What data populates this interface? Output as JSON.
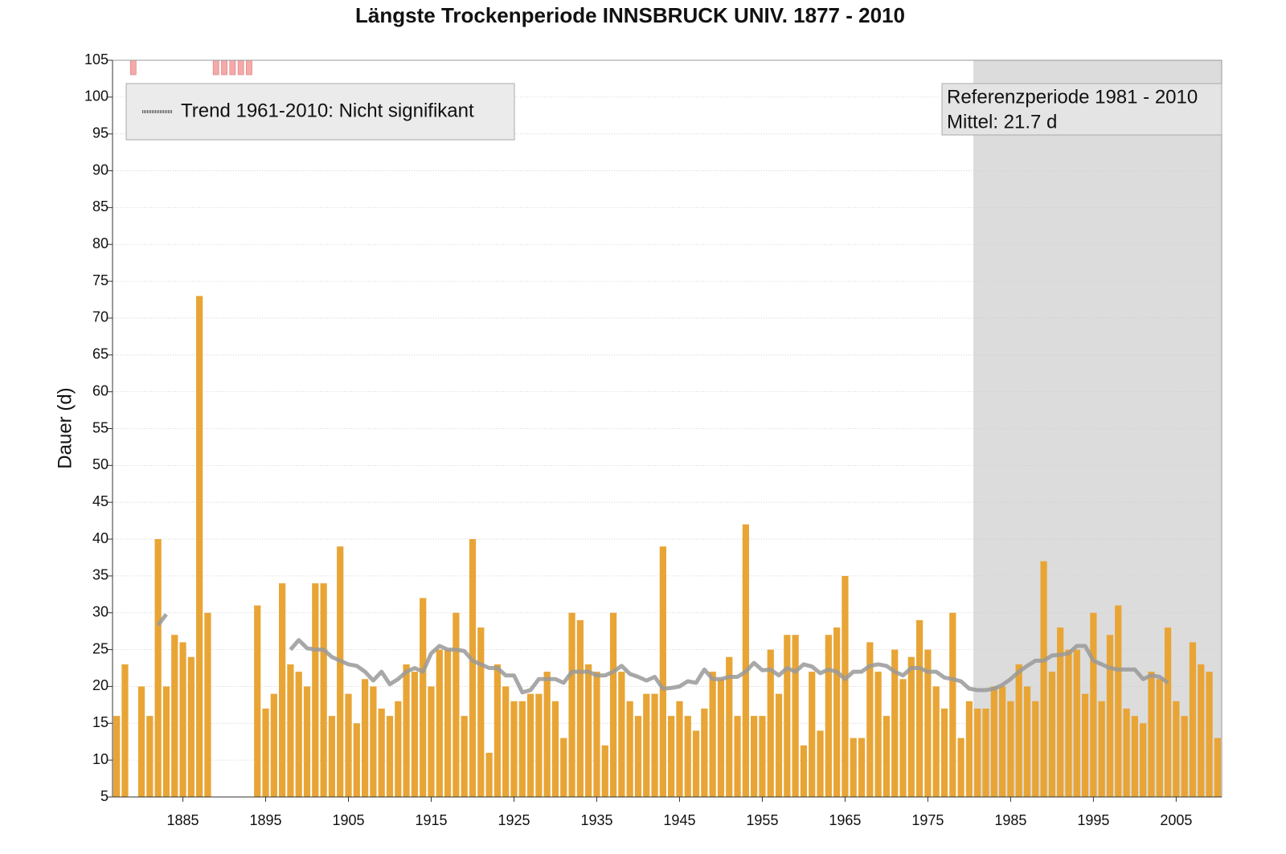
{
  "chart_data": {
    "type": "bar",
    "title": "Längste Trockenperiode INNSBRUCK UNIV. 1877 - 2010",
    "y_label": "Dauer (d)",
    "legend": "Trend 1961-2010: Nicht signifikant",
    "legend_position": "upper-left",
    "reference_text": "Referenzperiode 1981 - 2010",
    "reference_mean": "Mittel: 21.7 d",
    "reference_period": [
      1981,
      2010
    ],
    "grid": true,
    "xlim": [
      1876.5,
      2010.5
    ],
    "xticks": [
      1885,
      1895,
      1905,
      1915,
      1925,
      1935,
      1945,
      1955,
      1965,
      1975,
      1985,
      1995,
      2005
    ],
    "ylim": [
      5,
      105
    ],
    "yticks": [
      5,
      10,
      15,
      20,
      25,
      30,
      35,
      40,
      45,
      50,
      55,
      60,
      65,
      70,
      75,
      80,
      85,
      90,
      95,
      100,
      105
    ],
    "x": [
      1877,
      1878,
      1879,
      1880,
      1881,
      1882,
      1883,
      1884,
      1885,
      1886,
      1887,
      1888,
      1889,
      1890,
      1891,
      1892,
      1893,
      1894,
      1895,
      1896,
      1897,
      1898,
      1899,
      1900,
      1901,
      1902,
      1903,
      1904,
      1905,
      1906,
      1907,
      1908,
      1909,
      1910,
      1911,
      1912,
      1913,
      1914,
      1915,
      1916,
      1917,
      1918,
      1919,
      1920,
      1921,
      1922,
      1923,
      1924,
      1925,
      1926,
      1927,
      1928,
      1929,
      1930,
      1931,
      1932,
      1933,
      1934,
      1935,
      1936,
      1937,
      1938,
      1939,
      1940,
      1941,
      1942,
      1943,
      1944,
      1945,
      1946,
      1947,
      1948,
      1949,
      1950,
      1951,
      1952,
      1953,
      1954,
      1955,
      1956,
      1957,
      1958,
      1959,
      1960,
      1961,
      1962,
      1963,
      1964,
      1965,
      1966,
      1967,
      1968,
      1969,
      1970,
      1971,
      1972,
      1973,
      1974,
      1975,
      1976,
      1977,
      1978,
      1979,
      1980,
      1981,
      1982,
      1983,
      1984,
      1985,
      1986,
      1987,
      1988,
      1989,
      1990,
      1991,
      1992,
      1993,
      1994,
      1995,
      1996,
      1997,
      1998,
      1999,
      2000,
      2001,
      2002,
      2003,
      2004,
      2005,
      2006,
      2007,
      2008,
      2009,
      2010
    ],
    "series": [
      {
        "color": "#e8a535",
        "values": [
          16,
          23,
          null,
          20,
          16,
          40,
          20,
          27,
          26,
          24,
          73,
          30,
          null,
          null,
          null,
          null,
          null,
          31,
          17,
          19,
          34,
          23,
          22,
          20,
          34,
          34,
          16,
          39,
          19,
          15,
          21,
          20,
          17,
          16,
          18,
          23,
          22,
          32,
          20,
          25,
          25,
          30,
          16,
          40,
          28,
          11,
          23,
          20,
          18,
          18,
          19,
          19,
          22,
          18,
          13,
          30,
          29,
          23,
          22,
          12,
          30,
          22,
          18,
          16,
          19,
          19,
          39,
          16,
          18,
          16,
          14,
          17,
          22,
          21,
          24,
          16,
          42,
          16,
          16,
          25,
          19,
          27,
          27,
          12,
          22,
          14,
          27,
          28,
          35,
          13,
          13,
          26,
          22,
          16,
          25,
          21,
          24,
          29,
          25,
          20,
          17,
          30,
          13,
          18,
          17,
          17,
          20,
          20,
          18,
          23,
          20,
          18,
          37,
          22,
          28,
          25,
          25,
          19,
          30,
          18,
          27,
          31,
          17,
          16,
          15,
          22,
          21,
          28,
          18,
          16,
          26,
          23,
          22,
          13
        ]
      },
      {
        "color": "#999999",
        "values": [
          null,
          null,
          null,
          null,
          null,
          28.3,
          29.8,
          null,
          null,
          null,
          null,
          null,
          null,
          null,
          null,
          null,
          null,
          null,
          null,
          null,
          null,
          25,
          26.3,
          25.2,
          25,
          25,
          24,
          23.5,
          23,
          22.8,
          22,
          20.8,
          22,
          20.3,
          21,
          22,
          22.5,
          22,
          24.5,
          25.5,
          25,
          25,
          24.8,
          23.5,
          23,
          22.5,
          22.5,
          21.5,
          21.5,
          19.2,
          19.5,
          21,
          21,
          21,
          20.5,
          22,
          22,
          22,
          21.5,
          21.5,
          22,
          22.8,
          21.7,
          21.3,
          20.8,
          21.3,
          19.7,
          19.8,
          20,
          20.7,
          20.5,
          22.3,
          21,
          21,
          21.3,
          21.3,
          22,
          23.2,
          22.2,
          22.3,
          21.5,
          22.5,
          22,
          23,
          22.7,
          21.8,
          22.3,
          22,
          21,
          22,
          22,
          22.8,
          23,
          22.8,
          22,
          21.5,
          22.5,
          22.5,
          22,
          22,
          21.2,
          21,
          20.7,
          19.7,
          19.5,
          19.5,
          19.7,
          20.2,
          21,
          22,
          22.8,
          23.5,
          23.5,
          24.2,
          24.3,
          24.5,
          25.5,
          25.5,
          23.5,
          23,
          22.5,
          22.3,
          22.3,
          22.3,
          21,
          21.5,
          21.3,
          20.5,
          null,
          null,
          null,
          null,
          null,
          null
        ]
      }
    ]
  }
}
